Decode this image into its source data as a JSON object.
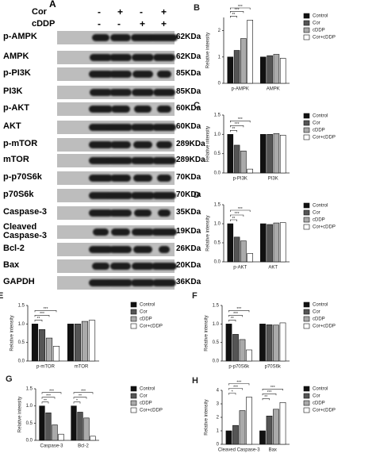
{
  "blot": {
    "panel": "A",
    "treatments": [
      {
        "name": "Cor",
        "signs": [
          "-",
          "+",
          "-",
          "+"
        ]
      },
      {
        "name": "cDDP",
        "signs": [
          "-",
          "-",
          "+",
          "+"
        ]
      }
    ],
    "rows": [
      {
        "label": "p-AMPK",
        "size": "62KDa"
      },
      {
        "label": "AMPK",
        "size": "62KDa"
      },
      {
        "label": "p-PI3K",
        "size": "85KDa"
      },
      {
        "label": "PI3K",
        "size": "85KDa"
      },
      {
        "label": "p-AKT",
        "size": "60KDa"
      },
      {
        "label": "AKT",
        "size": "60KDa"
      },
      {
        "label": "p-mTOR",
        "size": "289KDa"
      },
      {
        "label": "mTOR",
        "size": "289KDa"
      },
      {
        "label": "p-p70S6k",
        "size": "70KDa"
      },
      {
        "label": "p70S6k",
        "size": "70KDa"
      },
      {
        "label": "Caspase-3",
        "size": "35KDa"
      },
      {
        "label": "Cleaved Caspase-3",
        "size": "19KDa"
      },
      {
        "label": "Bcl-2",
        "size": "26KDa"
      },
      {
        "label": "Bax",
        "size": "20KDa"
      },
      {
        "label": "GAPDH",
        "size": "36KDa"
      }
    ]
  },
  "chart_data": [
    {
      "type": "bar",
      "panel": "B",
      "ylabel": "Relative intensity",
      "categories": [
        "p-AMPK",
        "AMPK"
      ],
      "series": [
        {
          "name": "Control",
          "color": "#111111",
          "values": [
            1,
            1
          ]
        },
        {
          "name": "Cor",
          "color": "#555555",
          "values": [
            1.25,
            1.05
          ]
        },
        {
          "name": "cDDP",
          "color": "#aaaaaa",
          "values": [
            1.7,
            1.1
          ]
        },
        {
          "name": "Cor+cDDP",
          "color": "#ffffff",
          "values": [
            2.4,
            0.95
          ]
        }
      ],
      "ylim": [
        0,
        2.5
      ],
      "yticks": [
        0,
        1,
        2
      ],
      "significance": [
        [
          "**",
          "***",
          "***"
        ],
        []
      ]
    },
    {
      "type": "bar",
      "panel": "C",
      "ylabel": "Relative intensity",
      "categories": [
        "p-PI3K",
        "PI3K"
      ],
      "series": [
        {
          "name": "Control",
          "color": "#111111",
          "values": [
            1,
            1
          ]
        },
        {
          "name": "Cor",
          "color": "#555555",
          "values": [
            0.72,
            1
          ]
        },
        {
          "name": "cDDP",
          "color": "#aaaaaa",
          "values": [
            0.57,
            1.02
          ]
        },
        {
          "name": "Cor+cDDP",
          "color": "#ffffff",
          "values": [
            0.1,
            0.98
          ]
        }
      ],
      "ylim": [
        0,
        1.5
      ],
      "yticks": [
        {
          "value": 0,
          "label": "0.0"
        },
        {
          "value": 0.5,
          "label": "0.5"
        },
        {
          "value": 1,
          "label": "1.0"
        },
        {
          "value": 1.5,
          "label": "1.5"
        }
      ],
      "significance": [
        [
          "**",
          "***",
          "***"
        ],
        []
      ]
    },
    {
      "type": "bar",
      "panel": "D",
      "ylabel": "Relative intensity",
      "categories": [
        "p-AKT",
        "AKT"
      ],
      "series": [
        {
          "name": "Control",
          "color": "#111111",
          "values": [
            1,
            1
          ]
        },
        {
          "name": "Cor",
          "color": "#555555",
          "values": [
            0.65,
            0.98
          ]
        },
        {
          "name": "cDDP",
          "color": "#aaaaaa",
          "values": [
            0.55,
            1.02
          ]
        },
        {
          "name": "Cor+cDDP",
          "color": "#ffffff",
          "values": [
            0.22,
            1.03
          ]
        }
      ],
      "ylim": [
        0,
        1.5
      ],
      "yticks": [
        {
          "value": 0,
          "label": "0.0"
        },
        {
          "value": 0.5,
          "label": "0.5"
        },
        {
          "value": 1,
          "label": "1.0"
        },
        {
          "value": 1.5,
          "label": "1.5"
        }
      ],
      "significance": [
        [
          "**",
          "***",
          "***"
        ],
        []
      ]
    },
    {
      "type": "bar",
      "panel": "E",
      "ylabel": "Relative intensity",
      "categories": [
        "p-mTOR",
        "mTOR"
      ],
      "series": [
        {
          "name": "Control",
          "color": "#111111",
          "values": [
            1,
            1
          ]
        },
        {
          "name": "Cor",
          "color": "#555555",
          "values": [
            0.85,
            1
          ]
        },
        {
          "name": "cDDP",
          "color": "#aaaaaa",
          "values": [
            0.62,
            1.07
          ]
        },
        {
          "name": "Cor+cDDP",
          "color": "#ffffff",
          "values": [
            0.4,
            1.1
          ]
        }
      ],
      "ylim": [
        0,
        1.5
      ],
      "yticks": [
        {
          "value": 0,
          "label": "0.0"
        },
        {
          "value": 0.5,
          "label": "0.5"
        },
        {
          "value": 1,
          "label": "1.0"
        },
        {
          "value": 1.5,
          "label": "1.5"
        }
      ],
      "significance": [
        [
          "**",
          "***",
          "***"
        ],
        []
      ]
    },
    {
      "type": "bar",
      "panel": "F",
      "ylabel": "Relative intensity",
      "categories": [
        "p-p70S6k",
        "p70S6k"
      ],
      "series": [
        {
          "name": "Control",
          "color": "#111111",
          "values": [
            1,
            1
          ]
        },
        {
          "name": "Cor",
          "color": "#555555",
          "values": [
            0.72,
            0.98
          ]
        },
        {
          "name": "cDDP",
          "color": "#aaaaaa",
          "values": [
            0.58,
            0.97
          ]
        },
        {
          "name": "Cor+cDDP",
          "color": "#ffffff",
          "values": [
            0.3,
            1.03
          ]
        }
      ],
      "ylim": [
        0,
        1.5
      ],
      "yticks": [
        {
          "value": 0,
          "label": "0.0"
        },
        {
          "value": 0.5,
          "label": "0.5"
        },
        {
          "value": 1,
          "label": "1.0"
        },
        {
          "value": 1.5,
          "label": "1.5"
        }
      ],
      "significance": [
        [
          "**",
          "***",
          "***"
        ],
        []
      ]
    },
    {
      "type": "bar",
      "panel": "G",
      "ylabel": "Relative intensity",
      "categories": [
        "Caspase-3",
        "Bcl-2"
      ],
      "series": [
        {
          "name": "Control",
          "color": "#111111",
          "values": [
            1,
            1
          ]
        },
        {
          "name": "Cor",
          "color": "#555555",
          "values": [
            0.8,
            0.82
          ]
        },
        {
          "name": "cDDP",
          "color": "#aaaaaa",
          "values": [
            0.45,
            0.65
          ]
        },
        {
          "name": "Cor+cDDP",
          "color": "#ffffff",
          "values": [
            0.18,
            0.12
          ]
        }
      ],
      "ylim": [
        0,
        1.5
      ],
      "yticks": [
        {
          "value": 0,
          "label": "0.0"
        },
        {
          "value": 0.5,
          "label": "0.5"
        },
        {
          "value": 1,
          "label": "1.0"
        },
        {
          "value": 1.5,
          "label": "1.5"
        }
      ],
      "significance": [
        [
          "**",
          "***",
          "***"
        ],
        [
          "*",
          "**",
          "***"
        ]
      ]
    },
    {
      "type": "bar",
      "panel": "H",
      "ylabel": "Relative intensity",
      "categories": [
        "Cleaved Caspase-3",
        "Bax"
      ],
      "series": [
        {
          "name": "Control",
          "color": "#111111",
          "values": [
            1,
            1
          ]
        },
        {
          "name": "Cor",
          "color": "#555555",
          "values": [
            1.4,
            2.1
          ]
        },
        {
          "name": "cDDP",
          "color": "#aaaaaa",
          "values": [
            2.5,
            2.6
          ]
        },
        {
          "name": "Cor+cDDP",
          "color": "#ffffff",
          "values": [
            3.5,
            3.1
          ]
        }
      ],
      "ylim": [
        0,
        4
      ],
      "yticks": [
        0,
        1,
        2,
        3,
        4
      ],
      "significance": [
        [
          "*",
          "***",
          "***"
        ],
        [
          "**",
          "***",
          "***"
        ]
      ]
    }
  ]
}
